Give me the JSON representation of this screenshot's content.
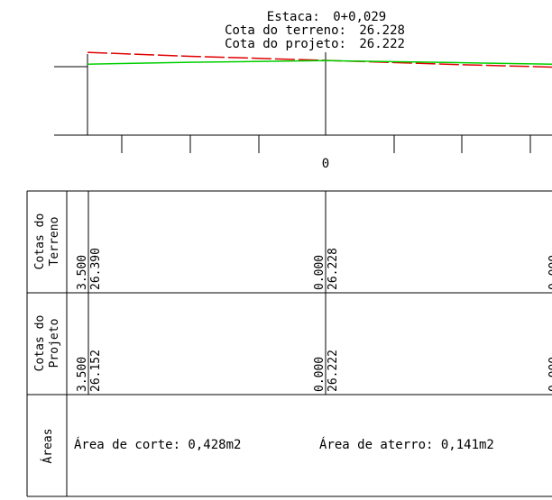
{
  "cursor_info": {
    "station_label": "Estaca:",
    "station_value": "0+0,029",
    "terrain_label": "Cota do terreno:",
    "terrain_value": "26.228",
    "design_label": "Cota do projeto:",
    "design_value": "26.222"
  },
  "profile": {
    "x_tick_label": "0",
    "colors": {
      "terrain": "#e00000",
      "design": "#00d000",
      "lines": "#000000"
    },
    "terrain_line": {
      "offset_x": [
        3.5,
        2.0,
        0.0,
        -2.0,
        -3.4
      ],
      "elevation": [
        26.39,
        26.31,
        26.228,
        26.14,
        26.09
      ]
    },
    "design_line": {
      "offset_x": [
        3.5,
        2.0,
        0.0,
        -2.0,
        -3.4
      ],
      "elevation": [
        26.152,
        26.19,
        26.222,
        26.18,
        26.15
      ]
    }
  },
  "table": {
    "rows": [
      {
        "label": "Cotas do Terreno",
        "label_line1": "Cotas do",
        "label_line2": "Terreno",
        "columns": [
          {
            "offset": "3.500",
            "elevation": "26.390"
          },
          {
            "offset": "0.000",
            "elevation": "26.228"
          }
        ]
      },
      {
        "label": "Cotas do Projeto",
        "label_line1": "Cotas do",
        "label_line2": "Projeto",
        "columns": [
          {
            "offset": "3.500",
            "elevation": "26.152"
          },
          {
            "offset": "0.000",
            "elevation": "26.222"
          }
        ]
      },
      {
        "label": "Áreas",
        "cut_area": "Área de corte: 0,428m2",
        "fill_area": "Área de aterro: 0,141m2"
      }
    ]
  }
}
